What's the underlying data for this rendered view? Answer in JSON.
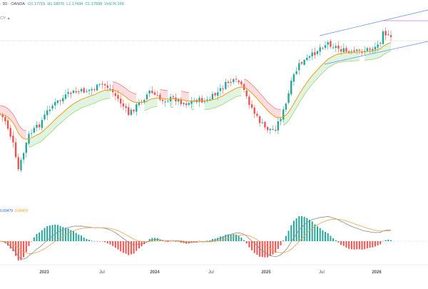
{
  "header": {
    "symbol": "· 3D · OANDA",
    "open": "O1.17715",
    "high": "H1.18076",
    "low": "L1.17434",
    "close": "C1.17838",
    "volume": "Vol176.156",
    "indicator_stub": "C/Y ▲"
  },
  "macd_legend": {
    "macd_value": "0.00479",
    "signal_value": "0.00470"
  },
  "colors": {
    "up": "#26a69a",
    "down": "#ef5350",
    "ema": "#f39c12",
    "cloud_up": "#d9f2dc",
    "cloud_down": "#fbd7d9",
    "channel": "#5b8def",
    "macd_line": "#8a8a8a",
    "signal_line": "#f0a04b",
    "hist_up": "#26a69a",
    "hist_down": "#ef5350",
    "resistance": "#c77dd6"
  },
  "chart_data": [
    {
      "type": "candlestick",
      "title": "",
      "x_ticks": [
        "2023",
        "Jul",
        "2024",
        "Jul",
        "2025",
        "Jul",
        "2026"
      ],
      "approx_path": [
        [
          "2022-07",
          1.02
        ],
        [
          "2022-09",
          0.97
        ],
        [
          "2022-10",
          0.98
        ],
        [
          "2022-12",
          1.06
        ],
        [
          "2023-02",
          1.07
        ],
        [
          "2023-04",
          1.1
        ],
        [
          "2023-07",
          1.12
        ],
        [
          "2023-10",
          1.05
        ],
        [
          "2023-12",
          1.1
        ],
        [
          "2024-04",
          1.07
        ],
        [
          "2024-07",
          1.09
        ],
        [
          "2024-09",
          1.11
        ],
        [
          "2025-01",
          1.03
        ],
        [
          "2025-04",
          1.13
        ],
        [
          "2025-07",
          1.17
        ],
        [
          "2025-10",
          1.16
        ],
        [
          "2026-01",
          1.19
        ],
        [
          "2026-02",
          1.178
        ]
      ],
      "overlays": [
        "EMA",
        "trailing stop cloud",
        "rising channel"
      ]
    },
    {
      "type": "macd",
      "series": [
        {
          "name": "",
          "values": []
        },
        {
          "name": "",
          "values": []
        }
      ],
      "note_macd": "0.00479",
      "note_signal": "0.00470"
    }
  ]
}
